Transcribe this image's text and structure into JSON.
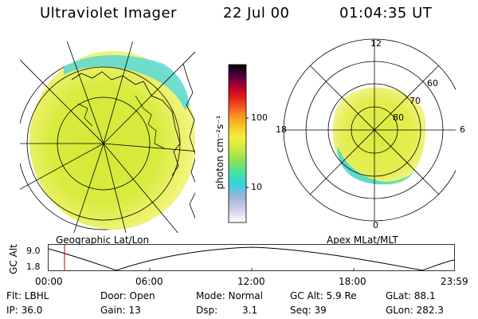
{
  "header": {
    "instrument": "Ultraviolet Imager",
    "date": "22 Jul 00",
    "time": "01:04:35 UT"
  },
  "colorbar": {
    "unit_label": "photon cm⁻²s⁻¹",
    "tick_100": "100",
    "tick_10": "10",
    "colors": [
      "#ffffff",
      "#d0d0e8",
      "#9fb4d8",
      "#38d0e0",
      "#40e0b0",
      "#7fe060",
      "#c8e840",
      "#f0f040",
      "#f8c020",
      "#f89020",
      "#f05020",
      "#e01818",
      "#b00030",
      "#500040",
      "#000000"
    ]
  },
  "left_map": {
    "caption": "Geographic Lat/Lon"
  },
  "right_map": {
    "caption": "Apex MLat/MLT",
    "mlt_labels": {
      "top": "12",
      "left": "18",
      "right": "6",
      "bottom": "0"
    },
    "lat_labels": [
      "60",
      "70",
      "80"
    ]
  },
  "altitude_plot": {
    "ylabel": "GC Alt",
    "ytick_top": "9.0",
    "ytick_bottom": "1.8",
    "xticks": [
      "00:00",
      "06:00",
      "12:00",
      "18:00",
      "23:59"
    ],
    "current_marker_color": "#c00000"
  },
  "status": {
    "flt": "Flt: LBHL",
    "ip": "IP: 36.0",
    "door": "Door: Open",
    "gain": "Gain: 13",
    "mode": "Mode: Normal",
    "dsp_label": "Dsp:",
    "dsp_value": "3.1",
    "gc_alt": "GC Alt: 5.9 Re",
    "seq": "Seq: 39",
    "glat": "GLat:  88.1",
    "glon": "GLon: 282.3"
  }
}
